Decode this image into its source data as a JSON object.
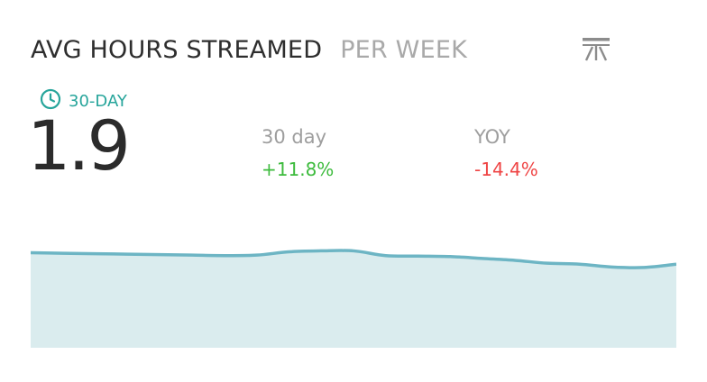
{
  "widget": {
    "title": "AVG HOURS STREAMED",
    "subtitle": "PER WEEK",
    "logo_icon": "antenna-tower-icon",
    "period_icon": "clock-icon",
    "period_label": "30-DAY",
    "value": "1.9",
    "stats": [
      {
        "label": "30 day",
        "value": "+11.8%",
        "status": "positive"
      },
      {
        "label": "YOY",
        "value": "-14.4%",
        "status": "negative"
      }
    ]
  },
  "colors": {
    "accent": "#27a59b",
    "positive": "#3dbb3d",
    "negative": "#ef4545",
    "line": "#6db5c4",
    "fill": "#daecee"
  },
  "chart_data": {
    "type": "area",
    "values": [
      2.0,
      1.99,
      1.98,
      1.97,
      1.96,
      1.95,
      1.94,
      1.95,
      2.02,
      2.04,
      2.04,
      1.94,
      1.93,
      1.92,
      1.88,
      1.84,
      1.78,
      1.76,
      1.7,
      1.69,
      1.76
    ],
    "ylim": [
      0,
      2.2
    ]
  }
}
